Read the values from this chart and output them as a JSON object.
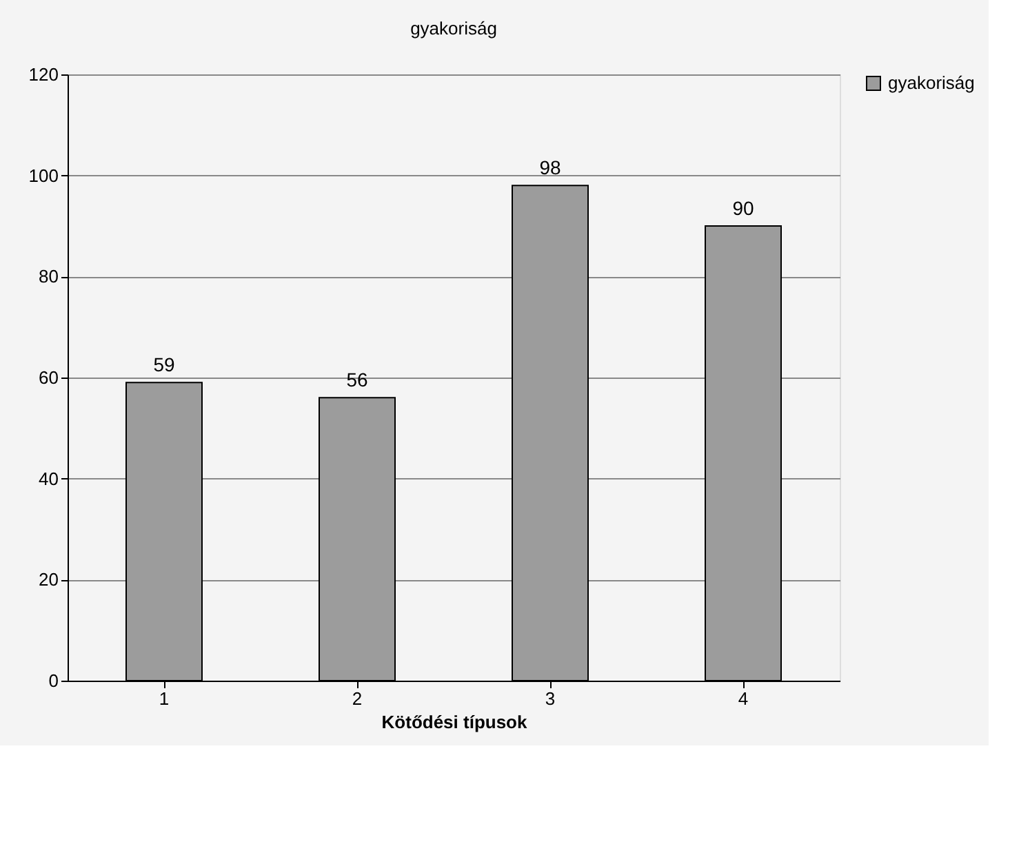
{
  "chart_data": {
    "type": "bar",
    "title": "gyakoriság",
    "xlabel": "Kötődési típusok",
    "categories": [
      "1",
      "2",
      "3",
      "4"
    ],
    "series": [
      {
        "name": "gyakoriság",
        "color": "#9c9c9c",
        "values": [
          59,
          56,
          98,
          90
        ]
      }
    ],
    "ylim": [
      0,
      120
    ],
    "yticks": [
      0,
      20,
      40,
      60,
      80,
      100,
      120
    ],
    "grid": "y",
    "legend": "right",
    "data_labels": true
  }
}
